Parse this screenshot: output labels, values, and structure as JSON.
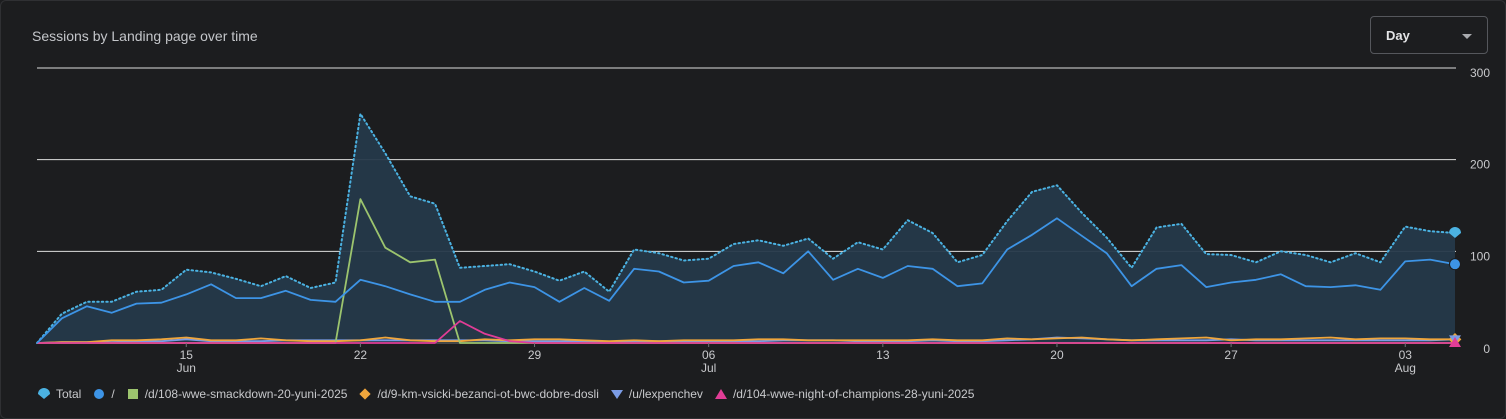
{
  "card": {
    "title": "Sessions by Landing page over time"
  },
  "granularity": {
    "selected": "Day"
  },
  "colors": {
    "total": "#4bb2e2",
    "slash": "#3d94e6",
    "smackdown": "#9cc46e",
    "bezanci": "#f0a63c",
    "lexpenchev": "#7b9ce6",
    "champions": "#e13d96",
    "grid": "#ffffff",
    "area": "#25394a"
  },
  "chart_data": {
    "type": "line",
    "xlabel": "",
    "ylabel": "",
    "ylim": [
      0,
      300
    ],
    "y_ticks": [
      0,
      100,
      200,
      300
    ],
    "x": [
      "2025-06-09",
      "2025-06-10",
      "2025-06-11",
      "2025-06-12",
      "2025-06-13",
      "2025-06-14",
      "2025-06-15",
      "2025-06-16",
      "2025-06-17",
      "2025-06-18",
      "2025-06-19",
      "2025-06-20",
      "2025-06-21",
      "2025-06-22",
      "2025-06-23",
      "2025-06-24",
      "2025-06-25",
      "2025-06-26",
      "2025-06-27",
      "2025-06-28",
      "2025-06-29",
      "2025-06-30",
      "2025-07-01",
      "2025-07-02",
      "2025-07-03",
      "2025-07-04",
      "2025-07-05",
      "2025-07-06",
      "2025-07-07",
      "2025-07-08",
      "2025-07-09",
      "2025-07-10",
      "2025-07-11",
      "2025-07-12",
      "2025-07-13",
      "2025-07-14",
      "2025-07-15",
      "2025-07-16",
      "2025-07-17",
      "2025-07-18",
      "2025-07-19",
      "2025-07-20",
      "2025-07-21",
      "2025-07-22",
      "2025-07-23",
      "2025-07-24",
      "2025-07-25",
      "2025-07-26",
      "2025-07-27",
      "2025-07-28",
      "2025-07-29",
      "2025-07-30",
      "2025-07-31",
      "2025-08-01",
      "2025-08-02",
      "2025-08-03",
      "2025-08-04",
      "2025-08-05"
    ],
    "x_ticks": [
      {
        "date": "2025-06-15",
        "label": "15",
        "sub": "Jun"
      },
      {
        "date": "2025-06-22",
        "label": "22",
        "sub": ""
      },
      {
        "date": "2025-06-29",
        "label": "29",
        "sub": ""
      },
      {
        "date": "2025-07-06",
        "label": "06",
        "sub": "Jul"
      },
      {
        "date": "2025-07-13",
        "label": "13",
        "sub": ""
      },
      {
        "date": "2025-07-20",
        "label": "20",
        "sub": ""
      },
      {
        "date": "2025-07-27",
        "label": "27",
        "sub": ""
      },
      {
        "date": "2025-08-03",
        "label": "03",
        "sub": "Aug"
      }
    ],
    "series": [
      {
        "name": "Total",
        "key": "total",
        "style": "dotted-area",
        "values": [
          0,
          32,
          45,
          45,
          56,
          58,
          80,
          77,
          70,
          62,
          73,
          60,
          66,
          250,
          207,
          160,
          152,
          82,
          84,
          86,
          78,
          68,
          78,
          56,
          102,
          98,
          90,
          92,
          108,
          112,
          106,
          114,
          92,
          110,
          102,
          134,
          120,
          88,
          96,
          133,
          165,
          172,
          142,
          115,
          82,
          126,
          130,
          97,
          96,
          88,
          100,
          96,
          88,
          98,
          88,
          127,
          122,
          120
        ]
      },
      {
        "name": "/",
        "key": "slash",
        "values": [
          0,
          27,
          40,
          33,
          43,
          44,
          53,
          64,
          49,
          49,
          57,
          47,
          45,
          69,
          62,
          53,
          45,
          45,
          58,
          66,
          61,
          45,
          60,
          46,
          81,
          78,
          66,
          68,
          84,
          88,
          76,
          100,
          69,
          81,
          71,
          84,
          81,
          62,
          65,
          102,
          118,
          136,
          117,
          98,
          62,
          81,
          85,
          61,
          66,
          69,
          75,
          62,
          61,
          63,
          58,
          89,
          91,
          86
        ]
      },
      {
        "name": "/d/108-wwe-smackdown-20-yuni-2025",
        "key": "smackdown",
        "values": [
          0,
          0,
          0,
          0,
          0,
          0,
          0,
          0,
          0,
          0,
          0,
          0,
          0,
          157,
          104,
          88,
          91,
          0,
          0,
          0,
          0,
          0,
          0,
          0,
          0,
          0,
          0,
          0,
          0,
          0,
          0,
          0,
          0,
          0,
          0,
          0,
          0,
          0,
          0,
          0,
          0,
          0,
          0,
          0,
          0,
          0,
          0,
          0,
          0,
          0,
          0,
          0,
          0,
          0,
          0,
          0,
          0,
          0
        ]
      },
      {
        "name": "/d/9-km-vsicki-bezanci-ot-bwc-dobre-dosli",
        "key": "bezanci",
        "values": [
          0,
          1,
          1,
          3,
          3,
          4,
          6,
          3,
          3,
          5,
          3,
          2,
          2,
          3,
          6,
          3,
          2,
          2,
          4,
          3,
          4,
          4,
          3,
          2,
          3,
          2,
          3,
          3,
          3,
          4,
          4,
          3,
          3,
          3,
          3,
          3,
          4,
          3,
          3,
          5,
          4,
          5,
          6,
          4,
          3,
          4,
          5,
          6,
          3,
          4,
          4,
          5,
          6,
          4,
          5,
          5,
          4,
          4
        ]
      },
      {
        "name": "/u/lexpenchev",
        "key": "lexpenchev",
        "values": [
          0,
          1,
          1,
          1,
          2,
          2,
          4,
          2,
          2,
          2,
          3,
          3,
          3,
          3,
          3,
          3,
          3,
          3,
          3,
          2,
          2,
          2,
          2,
          1,
          2,
          2,
          2,
          2,
          2,
          2,
          3,
          3,
          3,
          2,
          2,
          2,
          3,
          2,
          2,
          3,
          4,
          6,
          5,
          4,
          3,
          3,
          3,
          3,
          4,
          3,
          3,
          3,
          3,
          3,
          3,
          3,
          3,
          4
        ]
      },
      {
        "name": "/d/104-wwe-night-of-champions-28-yuni-2025",
        "key": "champions",
        "values": [
          0,
          0,
          0,
          0,
          0,
          0,
          0,
          0,
          0,
          0,
          0,
          0,
          0,
          0,
          0,
          0,
          0,
          24,
          10,
          2,
          0,
          0,
          0,
          0,
          0,
          0,
          0,
          0,
          0,
          0,
          0,
          0,
          0,
          0,
          0,
          0,
          0,
          0,
          0,
          0,
          0,
          0,
          0,
          0,
          0,
          0,
          0,
          0,
          0,
          0,
          0,
          0,
          0,
          0,
          0,
          0,
          0,
          0
        ]
      }
    ],
    "legend": {
      "position": "bottom-left"
    },
    "grid": true
  }
}
